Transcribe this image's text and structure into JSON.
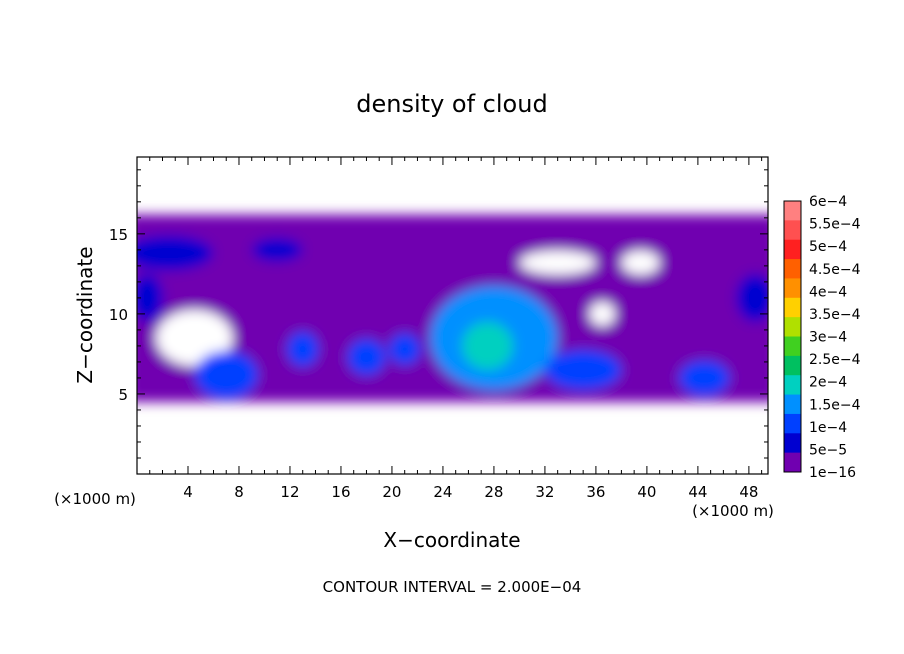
{
  "chart_data": {
    "type": "heatmap",
    "title": "density of cloud",
    "xlabel": "X−coordinate",
    "ylabel": "Z−coordinate",
    "x_unit": "(×1000 m)",
    "x_unit_left": "(×1000 m)",
    "xlim": [
      0,
      49.5
    ],
    "ylim": [
      0,
      19.8
    ],
    "x_ticks": [
      4,
      8,
      12,
      16,
      20,
      24,
      28,
      32,
      36,
      40,
      44,
      48
    ],
    "y_ticks": [
      5,
      10,
      15
    ],
    "footer": "CONTOUR INTERVAL = 2.000E−04",
    "colorbar": {
      "labels": [
        "6e−4",
        "5.5e−4",
        "5e−4",
        "4.5e−4",
        "4e−4",
        "3.5e−4",
        "3e−4",
        "2.5e−4",
        "2e−4",
        "1.5e−4",
        "1e−4",
        "5e−5",
        "1e−16"
      ],
      "colors": [
        "#ff8080",
        "#ff5050",
        "#ff2020",
        "#ff6000",
        "#ff9000",
        "#ffd000",
        "#b0e000",
        "#40d020",
        "#00c060",
        "#00d0c0",
        "#0090ff",
        "#0040ff",
        "#0000d0",
        "#7000b0"
      ]
    },
    "regions": [
      {
        "name": "cloud-layer",
        "level": 1e-16,
        "x_range": [
          0,
          49.5
        ],
        "z_range": [
          4.5,
          16.2
        ]
      },
      {
        "name": "gap-1",
        "level": 0,
        "center": [
          4.5,
          8.5
        ],
        "size": [
          6,
          3.5
        ]
      },
      {
        "name": "gap-2",
        "level": 0,
        "center": [
          33,
          13.2
        ],
        "size": [
          6,
          1.5
        ]
      },
      {
        "name": "gap-3",
        "level": 0,
        "center": [
          39.5,
          13.2
        ],
        "size": [
          3,
          1.5
        ]
      },
      {
        "name": "gap-4",
        "level": 0,
        "center": [
          36.5,
          10
        ],
        "size": [
          2,
          1.5
        ]
      },
      {
        "name": "cell-left-edge",
        "level": 5e-05,
        "center": [
          0.8,
          11
        ],
        "size": [
          2.5,
          3
        ]
      },
      {
        "name": "cell-upper-left",
        "level": 5e-05,
        "center": [
          2.5,
          13.8
        ],
        "size": [
          7,
          2.2
        ]
      },
      {
        "name": "cell-upper-mid",
        "level": 5e-05,
        "center": [
          11,
          14
        ],
        "size": [
          4,
          1.5
        ]
      },
      {
        "name": "cell-a",
        "level": 0.0001,
        "center": [
          7,
          6.2
        ],
        "size": [
          5,
          3
        ]
      },
      {
        "name": "cell-b",
        "level": 0.0001,
        "center": [
          13,
          7.8
        ],
        "size": [
          2.5,
          2.2
        ]
      },
      {
        "name": "cell-c",
        "level": 0.0001,
        "center": [
          18,
          7.3
        ],
        "size": [
          3,
          2.3
        ]
      },
      {
        "name": "cell-d",
        "level": 0.0001,
        "center": [
          21,
          7.8
        ],
        "size": [
          2.5,
          2
        ]
      },
      {
        "name": "cell-main",
        "level": 0.00015,
        "center": [
          28,
          8.5
        ],
        "size": [
          10,
          6.5
        ]
      },
      {
        "name": "cell-main-core",
        "level": 0.0002,
        "center": [
          27.5,
          8
        ],
        "size": [
          4,
          3
        ]
      },
      {
        "name": "cell-e",
        "level": 0.0001,
        "center": [
          35,
          6.5
        ],
        "size": [
          6,
          2.5
        ]
      },
      {
        "name": "cell-f",
        "level": 0.0001,
        "center": [
          44.5,
          6
        ],
        "size": [
          4,
          2.2
        ]
      },
      {
        "name": "cell-right-edge",
        "level": 5e-05,
        "center": [
          48.5,
          11
        ],
        "size": [
          3,
          3
        ]
      }
    ]
  }
}
